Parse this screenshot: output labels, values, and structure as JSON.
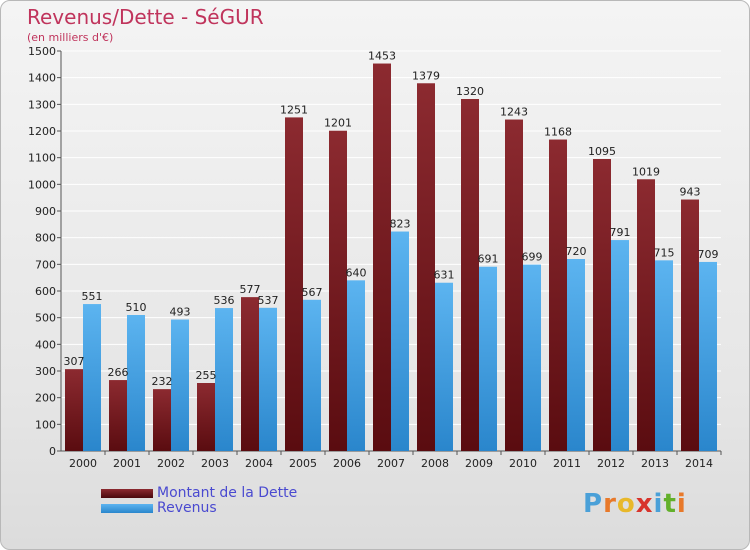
{
  "title": "Revenus/Dette - SéGUR",
  "subtitle": "(en milliers d'€)",
  "legend": {
    "debt_label": "Montant de la Dette",
    "revenue_label": "Revenus"
  },
  "logo": {
    "letters": [
      "P",
      "r",
      "o",
      "x",
      "i",
      "t",
      "i"
    ],
    "colors": [
      "#4aa0d8",
      "#e8792a",
      "#e8b82a",
      "#d8342c",
      "#4aa0d8",
      "#62b02a",
      "#e8792a"
    ]
  },
  "colors": {
    "debt": "#7a1e24",
    "revenue": "#4aa3e8",
    "title": "#c0345c",
    "legend_text": "#4a4ad0"
  },
  "chart_data": {
    "type": "bar",
    "categories": [
      "2000",
      "2001",
      "2002",
      "2003",
      "2004",
      "2005",
      "2006",
      "2007",
      "2008",
      "2009",
      "2010",
      "2011",
      "2012",
      "2013",
      "2014"
    ],
    "series": [
      {
        "name": "Montant de la Dette",
        "values": [
          307,
          266,
          232,
          255,
          577,
          1251,
          1201,
          1453,
          1379,
          1320,
          1243,
          1168,
          1095,
          1019,
          943
        ]
      },
      {
        "name": "Revenus",
        "values": [
          551,
          510,
          493,
          536,
          537,
          567,
          640,
          823,
          631,
          691,
          699,
          720,
          791,
          715,
          709
        ]
      }
    ],
    "ylim": [
      0,
      1500
    ],
    "yticks": [
      0,
      100,
      200,
      300,
      400,
      500,
      600,
      700,
      800,
      900,
      1000,
      1100,
      1200,
      1300,
      1400,
      1500
    ],
    "grid": true
  }
}
